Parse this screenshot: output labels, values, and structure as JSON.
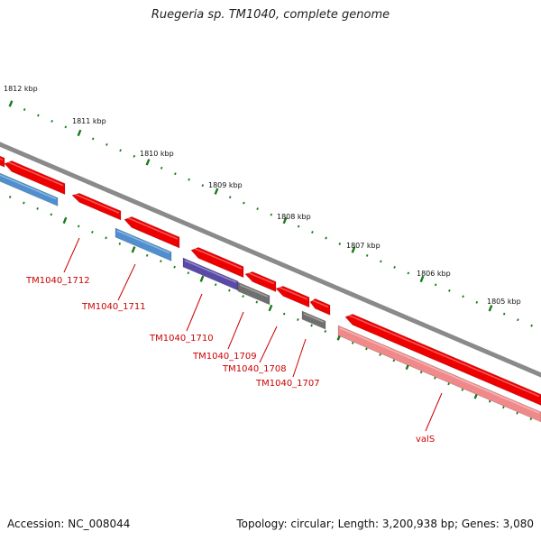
{
  "title": "Ruegeria sp. TM1040, complete genome",
  "accession_text": "Accession: NC_008044",
  "summary_text": "Topology: circular; Length: 3,200,938 bp; Genes: 3,080",
  "colors": {
    "backbone": "#8a8a8a",
    "tick_major": "#1a7a1a",
    "tick_minor": "#2a8a2a",
    "gene_red": "#ee0000",
    "gene_blue": "#4f8fd0",
    "gene_purple": "#5a4aa8",
    "gene_gray": "#6f6f6f",
    "gene_pink": "#f08a8a",
    "label_red": "#cc0000"
  },
  "kbp_labels": [
    "1812 kbp",
    "1811 kbp",
    "1810 kbp",
    "1809 kbp",
    "1808 kbp",
    "1807 kbp",
    "1806 kbp",
    "1805 kbp"
  ],
  "gene_labels": [
    {
      "id": "tm1040-1712",
      "text": "TM1040_1712"
    },
    {
      "id": "tm1040-1711",
      "text": "TM1040_1711"
    },
    {
      "id": "tm1040-1710",
      "text": "TM1040_1710"
    },
    {
      "id": "tm1040-1709",
      "text": "TM1040_1709"
    },
    {
      "id": "tm1040-1708",
      "text": "TM1040_1708"
    },
    {
      "id": "tm1040-1707",
      "text": "TM1040_1707"
    },
    {
      "id": "vals",
      "text": "valS"
    }
  ]
}
